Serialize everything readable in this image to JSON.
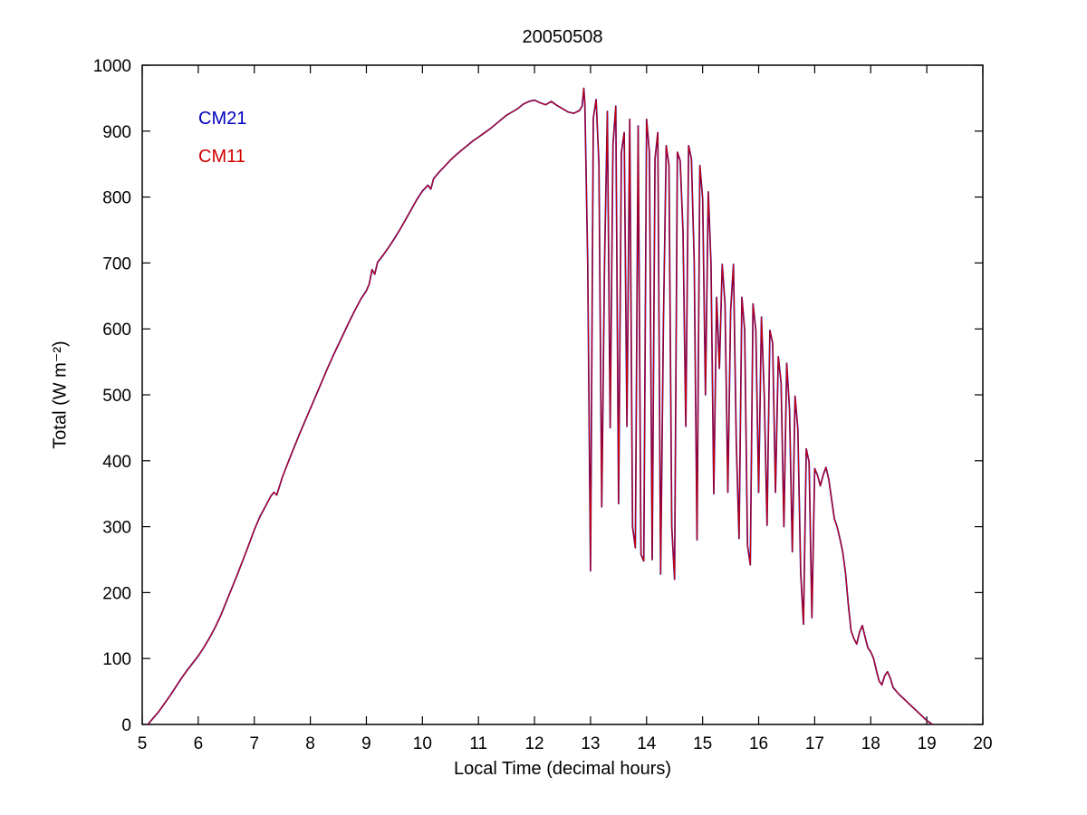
{
  "figure": {
    "title": "20050508"
  },
  "legend": {
    "entries": [
      {
        "label": "CM21",
        "color": "#0000bf"
      },
      {
        "label": "CM11",
        "color": "#d00000"
      }
    ],
    "position": "upper-left-inside"
  },
  "chart_data": {
    "type": "line",
    "title": "20050508",
    "xlabel": "Local Time (decimal hours)",
    "ylabel": "Total (W m⁻²)",
    "xlim": [
      5,
      20
    ],
    "ylim": [
      0,
      1000
    ],
    "xticks": [
      5,
      6,
      7,
      8,
      9,
      10,
      11,
      12,
      13,
      14,
      15,
      16,
      17,
      18,
      19,
      20
    ],
    "yticks": [
      0,
      100,
      200,
      300,
      400,
      500,
      600,
      700,
      800,
      900,
      1000
    ],
    "grid": false,
    "note": "Two pyranometer traces (CM21 blue under CM11 red) coincide at this scale; smooth clear-sky rise until ~12.9 h, strong cloud-induced oscillations 13-17.3 h, decaying tail to zero at ~19.1 h",
    "series": [
      {
        "name": "CM21",
        "color": "#0000bf"
      },
      {
        "name": "CM11",
        "color": "#d00000"
      }
    ],
    "points": [
      [
        5.1,
        0
      ],
      [
        5.2,
        10
      ],
      [
        5.3,
        20
      ],
      [
        5.4,
        32
      ],
      [
        5.5,
        44
      ],
      [
        5.6,
        57
      ],
      [
        5.7,
        70
      ],
      [
        5.8,
        82
      ],
      [
        5.9,
        93
      ],
      [
        6.0,
        104
      ],
      [
        6.1,
        117
      ],
      [
        6.2,
        131
      ],
      [
        6.3,
        147
      ],
      [
        6.4,
        165
      ],
      [
        6.5,
        186
      ],
      [
        6.6,
        207
      ],
      [
        6.7,
        228
      ],
      [
        6.8,
        250
      ],
      [
        6.9,
        272
      ],
      [
        7.0,
        295
      ],
      [
        7.1,
        315
      ],
      [
        7.2,
        331
      ],
      [
        7.3,
        347
      ],
      [
        7.35,
        352
      ],
      [
        7.4,
        348
      ],
      [
        7.5,
        375
      ],
      [
        7.6,
        397
      ],
      [
        7.7,
        418
      ],
      [
        7.8,
        439
      ],
      [
        7.9,
        459
      ],
      [
        8.0,
        479
      ],
      [
        8.1,
        499
      ],
      [
        8.2,
        519
      ],
      [
        8.3,
        539
      ],
      [
        8.4,
        558
      ],
      [
        8.5,
        576
      ],
      [
        8.6,
        594
      ],
      [
        8.7,
        612
      ],
      [
        8.8,
        629
      ],
      [
        8.9,
        645
      ],
      [
        9.0,
        658
      ],
      [
        9.05,
        668
      ],
      [
        9.1,
        690
      ],
      [
        9.15,
        683
      ],
      [
        9.2,
        701
      ],
      [
        9.3,
        712
      ],
      [
        9.4,
        724
      ],
      [
        9.5,
        737
      ],
      [
        9.6,
        751
      ],
      [
        9.7,
        766
      ],
      [
        9.8,
        781
      ],
      [
        9.9,
        796
      ],
      [
        10.0,
        809
      ],
      [
        10.1,
        818
      ],
      [
        10.15,
        812
      ],
      [
        10.2,
        828
      ],
      [
        10.3,
        838
      ],
      [
        10.4,
        847
      ],
      [
        10.5,
        856
      ],
      [
        10.6,
        864
      ],
      [
        10.7,
        871
      ],
      [
        10.8,
        878
      ],
      [
        10.9,
        885
      ],
      [
        11.0,
        891
      ],
      [
        11.1,
        897
      ],
      [
        11.2,
        903
      ],
      [
        11.3,
        910
      ],
      [
        11.4,
        917
      ],
      [
        11.5,
        924
      ],
      [
        11.6,
        929
      ],
      [
        11.7,
        934
      ],
      [
        11.8,
        941
      ],
      [
        11.9,
        945
      ],
      [
        12.0,
        947
      ],
      [
        12.1,
        943
      ],
      [
        12.2,
        940
      ],
      [
        12.3,
        945
      ],
      [
        12.4,
        939
      ],
      [
        12.5,
        934
      ],
      [
        12.6,
        929
      ],
      [
        12.7,
        927
      ],
      [
        12.8,
        931
      ],
      [
        12.85,
        938
      ],
      [
        12.88,
        965
      ],
      [
        12.9,
        940
      ],
      [
        12.95,
        700
      ],
      [
        13.0,
        233
      ],
      [
        13.05,
        920
      ],
      [
        13.1,
        948
      ],
      [
        13.15,
        850
      ],
      [
        13.2,
        330
      ],
      [
        13.25,
        700
      ],
      [
        13.3,
        930
      ],
      [
        13.35,
        450
      ],
      [
        13.4,
        880
      ],
      [
        13.45,
        938
      ],
      [
        13.5,
        335
      ],
      [
        13.55,
        868
      ],
      [
        13.6,
        898
      ],
      [
        13.65,
        452
      ],
      [
        13.7,
        918
      ],
      [
        13.75,
        300
      ],
      [
        13.8,
        268
      ],
      [
        13.85,
        908
      ],
      [
        13.9,
        258
      ],
      [
        13.95,
        248
      ],
      [
        14.0,
        918
      ],
      [
        14.05,
        868
      ],
      [
        14.1,
        250
      ],
      [
        14.15,
        858
      ],
      [
        14.2,
        898
      ],
      [
        14.25,
        228
      ],
      [
        14.3,
        610
      ],
      [
        14.35,
        878
      ],
      [
        14.4,
        848
      ],
      [
        14.45,
        300
      ],
      [
        14.5,
        220
      ],
      [
        14.55,
        868
      ],
      [
        14.6,
        855
      ],
      [
        14.65,
        748
      ],
      [
        14.7,
        452
      ],
      [
        14.75,
        878
      ],
      [
        14.8,
        858
      ],
      [
        14.85,
        700
      ],
      [
        14.9,
        280
      ],
      [
        14.95,
        848
      ],
      [
        15.0,
        798
      ],
      [
        15.05,
        500
      ],
      [
        15.1,
        808
      ],
      [
        15.15,
        700
      ],
      [
        15.2,
        350
      ],
      [
        15.25,
        648
      ],
      [
        15.3,
        540
      ],
      [
        15.35,
        698
      ],
      [
        15.4,
        638
      ],
      [
        15.45,
        352
      ],
      [
        15.5,
        628
      ],
      [
        15.55,
        698
      ],
      [
        15.6,
        430
      ],
      [
        15.65,
        282
      ],
      [
        15.7,
        648
      ],
      [
        15.75,
        598
      ],
      [
        15.8,
        272
      ],
      [
        15.85,
        242
      ],
      [
        15.9,
        638
      ],
      [
        15.95,
        598
      ],
      [
        16.0,
        352
      ],
      [
        16.05,
        618
      ],
      [
        16.1,
        500
      ],
      [
        16.15,
        302
      ],
      [
        16.2,
        598
      ],
      [
        16.25,
        578
      ],
      [
        16.3,
        352
      ],
      [
        16.35,
        558
      ],
      [
        16.4,
        518
      ],
      [
        16.45,
        300
      ],
      [
        16.5,
        548
      ],
      [
        16.55,
        478
      ],
      [
        16.6,
        262
      ],
      [
        16.65,
        498
      ],
      [
        16.7,
        448
      ],
      [
        16.75,
        232
      ],
      [
        16.8,
        152
      ],
      [
        16.85,
        418
      ],
      [
        16.9,
        398
      ],
      [
        16.95,
        162
      ],
      [
        17.0,
        388
      ],
      [
        17.05,
        378
      ],
      [
        17.1,
        362
      ],
      [
        17.15,
        378
      ],
      [
        17.2,
        390
      ],
      [
        17.25,
        372
      ],
      [
        17.3,
        342
      ],
      [
        17.35,
        312
      ],
      [
        17.4,
        300
      ],
      [
        17.45,
        282
      ],
      [
        17.5,
        262
      ],
      [
        17.55,
        230
      ],
      [
        17.6,
        182
      ],
      [
        17.65,
        142
      ],
      [
        17.7,
        130
      ],
      [
        17.75,
        122
      ],
      [
        17.8,
        140
      ],
      [
        17.85,
        150
      ],
      [
        17.9,
        132
      ],
      [
        17.95,
        116
      ],
      [
        18.0,
        110
      ],
      [
        18.05,
        100
      ],
      [
        18.1,
        82
      ],
      [
        18.15,
        66
      ],
      [
        18.2,
        60
      ],
      [
        18.25,
        74
      ],
      [
        18.3,
        80
      ],
      [
        18.35,
        70
      ],
      [
        18.4,
        56
      ],
      [
        18.5,
        46
      ],
      [
        18.6,
        38
      ],
      [
        18.7,
        30
      ],
      [
        18.8,
        22
      ],
      [
        18.9,
        14
      ],
      [
        19.0,
        6
      ],
      [
        19.1,
        0
      ]
    ]
  }
}
